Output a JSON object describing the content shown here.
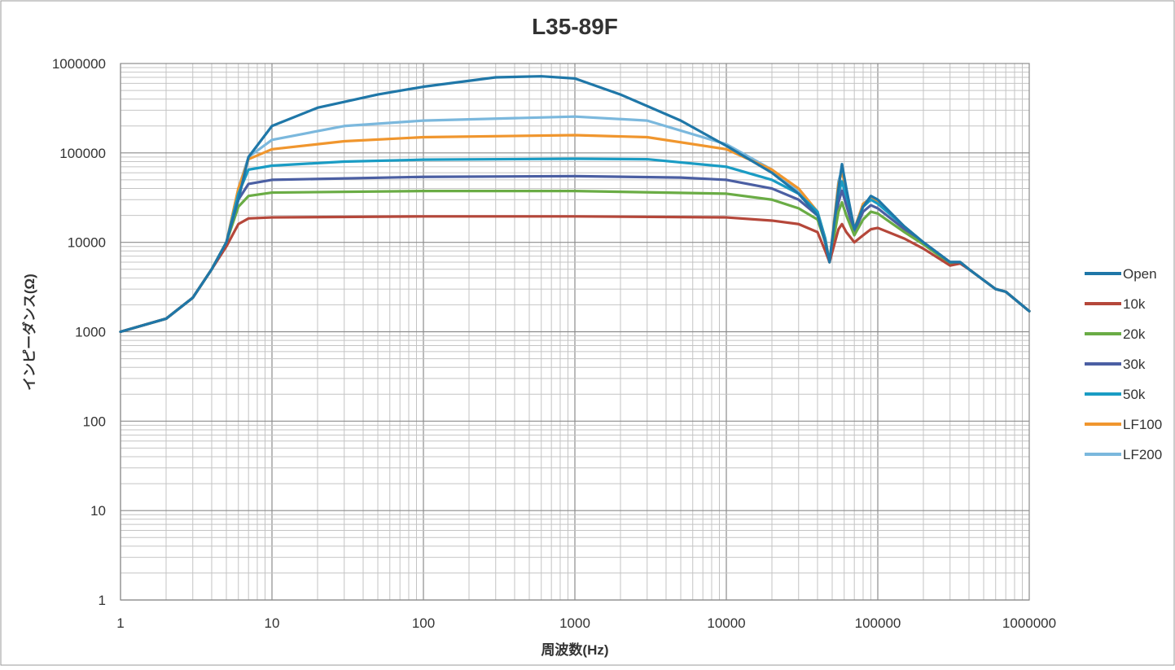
{
  "chart_data": {
    "type": "line",
    "title": "L35-89F",
    "xlabel": "周波数(Hz)",
    "ylabel": "インピーダンス(Ω)",
    "x_scale": "log",
    "y_scale": "log",
    "xlim": [
      1,
      1000000
    ],
    "ylim": [
      1,
      1000000
    ],
    "x_ticks": [
      "1",
      "10",
      "100",
      "1000",
      "10000",
      "100000",
      "1000000"
    ],
    "y_ticks": [
      "1",
      "10",
      "100",
      "1000",
      "10000",
      "100000",
      "1000000"
    ],
    "grid": true,
    "legend_position": "right",
    "series": [
      {
        "name": "Open",
        "color": "#1f77a8",
        "points": [
          [
            1,
            1000
          ],
          [
            2,
            1400
          ],
          [
            3,
            2400
          ],
          [
            4,
            5000
          ],
          [
            5,
            10000
          ],
          [
            6,
            30000
          ],
          [
            7,
            90000
          ],
          [
            10,
            200000
          ],
          [
            20,
            320000
          ],
          [
            50,
            450000
          ],
          [
            100,
            550000
          ],
          [
            300,
            700000
          ],
          [
            600,
            720000
          ],
          [
            1000,
            680000
          ],
          [
            2000,
            450000
          ],
          [
            5000,
            230000
          ],
          [
            10000,
            120000
          ],
          [
            20000,
            60000
          ],
          [
            30000,
            35000
          ],
          [
            40000,
            20000
          ],
          [
            45000,
            10000
          ],
          [
            48000,
            6000
          ],
          [
            55000,
            40000
          ],
          [
            58000,
            75000
          ],
          [
            62000,
            40000
          ],
          [
            70000,
            14000
          ],
          [
            80000,
            25000
          ],
          [
            90000,
            33000
          ],
          [
            100000,
            30000
          ],
          [
            150000,
            15000
          ],
          [
            200000,
            10000
          ],
          [
            300000,
            6000
          ],
          [
            350000,
            6000
          ],
          [
            400000,
            5000
          ],
          [
            600000,
            3000
          ],
          [
            700000,
            2800
          ],
          [
            1000000,
            1700
          ]
        ]
      },
      {
        "name": "10k",
        "color": "#b5473a",
        "points": [
          [
            1,
            1000
          ],
          [
            2,
            1400
          ],
          [
            3,
            2400
          ],
          [
            4,
            5000
          ],
          [
            5,
            9000
          ],
          [
            6,
            16000
          ],
          [
            7,
            18500
          ],
          [
            10,
            19000
          ],
          [
            100,
            19500
          ],
          [
            1000,
            19500
          ],
          [
            10000,
            19000
          ],
          [
            20000,
            17500
          ],
          [
            30000,
            16000
          ],
          [
            40000,
            13000
          ],
          [
            45000,
            8000
          ],
          [
            48000,
            6000
          ],
          [
            55000,
            14000
          ],
          [
            58000,
            16000
          ],
          [
            62000,
            13000
          ],
          [
            70000,
            10000
          ],
          [
            80000,
            12000
          ],
          [
            90000,
            14000
          ],
          [
            100000,
            14500
          ],
          [
            150000,
            11000
          ],
          [
            200000,
            8500
          ],
          [
            300000,
            5500
          ],
          [
            350000,
            5800
          ],
          [
            400000,
            5000
          ],
          [
            600000,
            3000
          ],
          [
            700000,
            2800
          ],
          [
            1000000,
            1700
          ]
        ]
      },
      {
        "name": "20k",
        "color": "#6aac45",
        "points": [
          [
            1,
            1000
          ],
          [
            2,
            1400
          ],
          [
            3,
            2400
          ],
          [
            4,
            5000
          ],
          [
            5,
            10000
          ],
          [
            6,
            25000
          ],
          [
            7,
            33000
          ],
          [
            10,
            36000
          ],
          [
            100,
            37500
          ],
          [
            1000,
            37500
          ],
          [
            10000,
            35000
          ],
          [
            20000,
            30000
          ],
          [
            30000,
            24000
          ],
          [
            40000,
            18000
          ],
          [
            45000,
            10000
          ],
          [
            48000,
            6000
          ],
          [
            55000,
            22000
          ],
          [
            58000,
            28000
          ],
          [
            62000,
            20000
          ],
          [
            70000,
            12000
          ],
          [
            80000,
            18000
          ],
          [
            90000,
            22000
          ],
          [
            100000,
            21000
          ],
          [
            150000,
            13000
          ],
          [
            200000,
            9500
          ],
          [
            300000,
            5800
          ],
          [
            350000,
            6000
          ],
          [
            400000,
            5000
          ],
          [
            600000,
            3000
          ],
          [
            700000,
            2800
          ],
          [
            1000000,
            1700
          ]
        ]
      },
      {
        "name": "30k",
        "color": "#4b5fa3",
        "points": [
          [
            1,
            1000
          ],
          [
            2,
            1400
          ],
          [
            3,
            2400
          ],
          [
            4,
            5000
          ],
          [
            5,
            10000
          ],
          [
            6,
            30000
          ],
          [
            7,
            45000
          ],
          [
            10,
            50000
          ],
          [
            100,
            54000
          ],
          [
            1000,
            55000
          ],
          [
            5000,
            53000
          ],
          [
            10000,
            50000
          ],
          [
            20000,
            40000
          ],
          [
            30000,
            30000
          ],
          [
            40000,
            20000
          ],
          [
            45000,
            10000
          ],
          [
            48000,
            6000
          ],
          [
            55000,
            28000
          ],
          [
            58000,
            38000
          ],
          [
            62000,
            26000
          ],
          [
            70000,
            13000
          ],
          [
            80000,
            22000
          ],
          [
            90000,
            26000
          ],
          [
            100000,
            24000
          ],
          [
            150000,
            14000
          ],
          [
            200000,
            10000
          ],
          [
            300000,
            6000
          ],
          [
            350000,
            6000
          ],
          [
            400000,
            5000
          ],
          [
            600000,
            3000
          ],
          [
            700000,
            2800
          ],
          [
            1000000,
            1700
          ]
        ]
      },
      {
        "name": "50k",
        "color": "#1a9cc4",
        "points": [
          [
            1,
            1000
          ],
          [
            2,
            1400
          ],
          [
            3,
            2400
          ],
          [
            4,
            5000
          ],
          [
            5,
            10000
          ],
          [
            6,
            35000
          ],
          [
            7,
            65000
          ],
          [
            10,
            72000
          ],
          [
            30,
            80000
          ],
          [
            100,
            84000
          ],
          [
            1000,
            86000
          ],
          [
            3000,
            85000
          ],
          [
            10000,
            70000
          ],
          [
            20000,
            50000
          ],
          [
            30000,
            35000
          ],
          [
            40000,
            22000
          ],
          [
            45000,
            11000
          ],
          [
            48000,
            6000
          ],
          [
            55000,
            35000
          ],
          [
            58000,
            48000
          ],
          [
            62000,
            32000
          ],
          [
            70000,
            13500
          ],
          [
            80000,
            25000
          ],
          [
            90000,
            30000
          ],
          [
            100000,
            27000
          ],
          [
            150000,
            15000
          ],
          [
            200000,
            10000
          ],
          [
            300000,
            6000
          ],
          [
            350000,
            6000
          ],
          [
            400000,
            5000
          ],
          [
            600000,
            3000
          ],
          [
            700000,
            2800
          ],
          [
            1000000,
            1700
          ]
        ]
      },
      {
        "name": "LF100",
        "color": "#f0962e",
        "points": [
          [
            1,
            1000
          ],
          [
            2,
            1400
          ],
          [
            3,
            2400
          ],
          [
            4,
            5000
          ],
          [
            5,
            10000
          ],
          [
            6,
            40000
          ],
          [
            7,
            85000
          ],
          [
            10,
            110000
          ],
          [
            30,
            135000
          ],
          [
            100,
            150000
          ],
          [
            1000,
            158000
          ],
          [
            3000,
            150000
          ],
          [
            10000,
            110000
          ],
          [
            20000,
            65000
          ],
          [
            30000,
            40000
          ],
          [
            40000,
            22000
          ],
          [
            45000,
            11000
          ],
          [
            48000,
            6000
          ],
          [
            55000,
            45000
          ],
          [
            58000,
            62000
          ],
          [
            62000,
            38000
          ],
          [
            70000,
            14000
          ],
          [
            80000,
            27000
          ],
          [
            90000,
            31000
          ],
          [
            100000,
            28000
          ],
          [
            150000,
            15000
          ],
          [
            200000,
            10000
          ],
          [
            300000,
            6000
          ],
          [
            350000,
            6000
          ],
          [
            400000,
            5000
          ],
          [
            600000,
            3000
          ],
          [
            700000,
            2800
          ],
          [
            1000000,
            1700
          ]
        ]
      },
      {
        "name": "LF200",
        "color": "#7bb8dd",
        "points": [
          [
            1,
            1000
          ],
          [
            2,
            1400
          ],
          [
            3,
            2400
          ],
          [
            4,
            5000
          ],
          [
            5,
            10000
          ],
          [
            6,
            40000
          ],
          [
            7,
            90000
          ],
          [
            10,
            140000
          ],
          [
            30,
            200000
          ],
          [
            100,
            230000
          ],
          [
            1000,
            255000
          ],
          [
            3000,
            230000
          ],
          [
            10000,
            125000
          ],
          [
            20000,
            65000
          ],
          [
            30000,
            38000
          ],
          [
            40000,
            21000
          ],
          [
            45000,
            10500
          ],
          [
            48000,
            6000
          ],
          [
            55000,
            48000
          ],
          [
            58000,
            65000
          ],
          [
            62000,
            38000
          ],
          [
            70000,
            14000
          ],
          [
            80000,
            27000
          ],
          [
            90000,
            31000
          ],
          [
            100000,
            28000
          ],
          [
            150000,
            15000
          ],
          [
            200000,
            10000
          ],
          [
            300000,
            6000
          ],
          [
            350000,
            6000
          ],
          [
            400000,
            5000
          ],
          [
            600000,
            3000
          ],
          [
            700000,
            2800
          ],
          [
            1000000,
            1700
          ]
        ]
      }
    ]
  }
}
